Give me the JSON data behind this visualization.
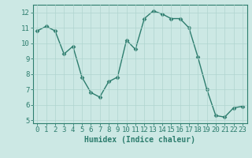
{
  "x": [
    0,
    1,
    2,
    3,
    4,
    5,
    6,
    7,
    8,
    9,
    10,
    11,
    12,
    13,
    14,
    15,
    16,
    17,
    18,
    19,
    20,
    21,
    22,
    23
  ],
  "y": [
    10.8,
    11.1,
    10.8,
    9.3,
    9.8,
    7.8,
    6.8,
    6.5,
    7.5,
    7.8,
    10.2,
    9.6,
    11.6,
    12.1,
    11.9,
    11.6,
    11.6,
    11.0,
    9.1,
    7.0,
    5.3,
    5.2,
    5.8,
    5.9
  ],
  "line_color": "#2d7d6e",
  "marker": "D",
  "markersize": 2.5,
  "linewidth": 1.0,
  "background_color": "#cce8e4",
  "grid_color": "#b0d4cf",
  "xlabel": "Humidex (Indice chaleur)",
  "xlabel_fontsize": 7,
  "tick_fontsize": 6.5,
  "ylim": [
    4.8,
    12.5
  ],
  "xlim": [
    -0.5,
    23.5
  ],
  "yticks": [
    5,
    6,
    7,
    8,
    9,
    10,
    11,
    12
  ],
  "xticks": [
    0,
    1,
    2,
    3,
    4,
    5,
    6,
    7,
    8,
    9,
    10,
    11,
    12,
    13,
    14,
    15,
    16,
    17,
    18,
    19,
    20,
    21,
    22,
    23
  ]
}
